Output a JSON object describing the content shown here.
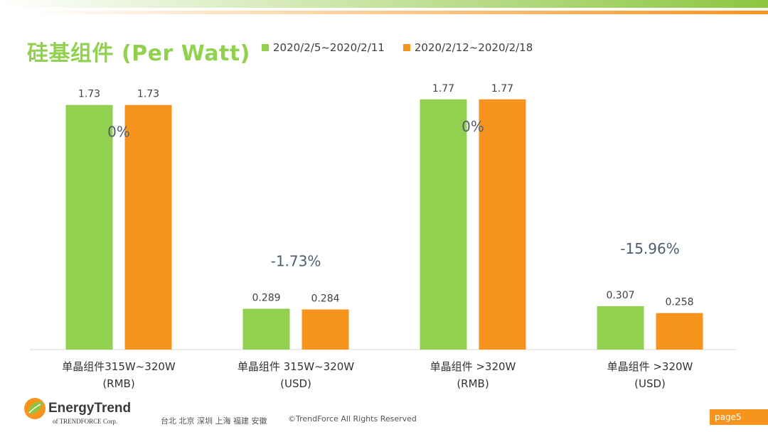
{
  "title": "硅基组件 (Per Watt)",
  "colors": {
    "series_1": "#92d050",
    "series_2": "#f7941d",
    "axis": "#d9d9d9",
    "change_label": "#4f5d73"
  },
  "footer": {
    "logo_name": "EnergyTrend",
    "logo_sub": "of TRENDFORCE Corp.",
    "cities": "台北  北京  深圳  上海  福建  安徽",
    "copyright": "©TrendForce All Rights Reserved",
    "page": "page5"
  },
  "chart_data": {
    "type": "bar",
    "title": "硅基组件 (Per Watt)",
    "xlabel": "",
    "ylabel": "",
    "grid": false,
    "legend_position": "top",
    "categories": [
      [
        "单晶组件315W~320W",
        "(RMB)"
      ],
      [
        "单晶组件 315W~320W",
        "(USD)"
      ],
      [
        "单晶组件 >320W",
        "(RMB)"
      ],
      [
        "单晶组件 >320W",
        "(USD)"
      ]
    ],
    "series": [
      {
        "name": "2020/2/5~2020/2/11",
        "values": [
          1.73,
          0.289,
          1.77,
          0.307
        ],
        "labels": [
          "1.73",
          "0.289",
          "1.77",
          "0.307"
        ]
      },
      {
        "name": "2020/2/12~2020/2/18",
        "values": [
          1.73,
          0.284,
          1.77,
          0.258
        ],
        "labels": [
          "1.73",
          "0.284",
          "1.77",
          "0.258"
        ]
      }
    ],
    "changes": [
      "0%",
      "-1.73%",
      "0%",
      "-15.96%"
    ]
  }
}
